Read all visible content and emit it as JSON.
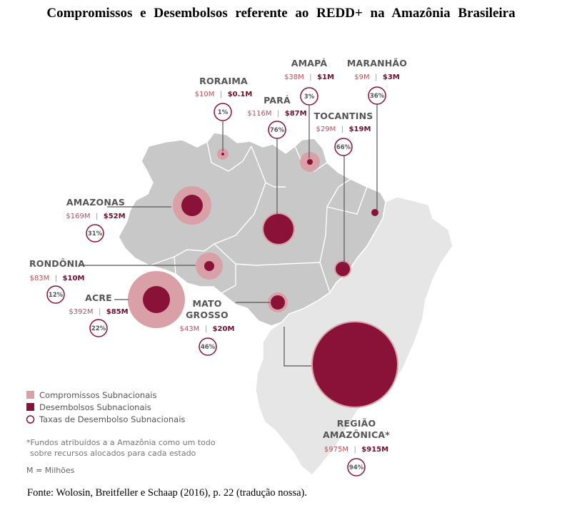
{
  "title": "Compromissos e Desembolsos referente ao REDD+ na Amazônia Brasileira",
  "source": "Fonte: Wolosin, Breitfeller e Schaap (2016), p. 22 (tradução nossa).",
  "colors": {
    "compromissos": "#d9a1a7",
    "desembolsos": "#8a1238",
    "amazonia_region": "#c8c8c8",
    "rest_of_brazil": "#e6e6e6"
  },
  "states": [
    {
      "name": "RORAIMA",
      "compromissos": "$10M",
      "desembolsos": "$0.1M",
      "taxa": "1%",
      "compromissos_musd": 10,
      "desembolsos_musd": 0.1
    },
    {
      "name": "AMAPÁ",
      "compromissos": "$38M",
      "desembolsos": "$1M",
      "taxa": "3%",
      "compromissos_musd": 38,
      "desembolsos_musd": 1
    },
    {
      "name": "MARANHÃO",
      "compromissos": "$9M",
      "desembolsos": "$3M",
      "taxa": "36%",
      "compromissos_musd": 9,
      "desembolsos_musd": 3
    },
    {
      "name": "PARÁ",
      "compromissos": "$116M",
      "desembolsos": "$87M",
      "taxa": "76%",
      "compromissos_musd": 116,
      "desembolsos_musd": 87
    },
    {
      "name": "TOCANTINS",
      "compromissos": "$29M",
      "desembolsos": "$19M",
      "taxa": "66%",
      "compromissos_musd": 29,
      "desembolsos_musd": 19
    },
    {
      "name": "AMAZONAS",
      "compromissos": "$169M",
      "desembolsos": "$52M",
      "taxa": "31%",
      "compromissos_musd": 169,
      "desembolsos_musd": 52
    },
    {
      "name": "RONDÔNIA",
      "compromissos": "$83M",
      "desembolsos": "$10M",
      "taxa": "12%",
      "compromissos_musd": 83,
      "desembolsos_musd": 10
    },
    {
      "name": "ACRE",
      "compromissos": "$392M",
      "desembolsos": "$85M",
      "taxa": "22%",
      "compromissos_musd": 392,
      "desembolsos_musd": 85
    },
    {
      "name_line1": "MATO",
      "name_line2": "GROSSO",
      "compromissos": "$43M",
      "desembolsos": "$20M",
      "taxa": "46%",
      "compromissos_musd": 43,
      "desembolsos_musd": 20
    },
    {
      "name_line1": "REGIÃO",
      "name_line2": "AMAZÔNICA*",
      "compromissos": "$975M",
      "desembolsos": "$915M",
      "taxa": "94%",
      "compromissos_musd": 975,
      "desembolsos_musd": 915
    }
  ],
  "separator": "|",
  "legend": {
    "compromissos": "Compromissos Subnacionais",
    "desembolsos": "Desembolsos Subnacionais",
    "taxas": "Taxas de Desembolso Subnacionais"
  },
  "note_line1": "*Fundos atribuídos a a Amazônia como um todo",
  "note_line2": "sobre recursos alocados para cada estado",
  "unit": "M = Milhões"
}
